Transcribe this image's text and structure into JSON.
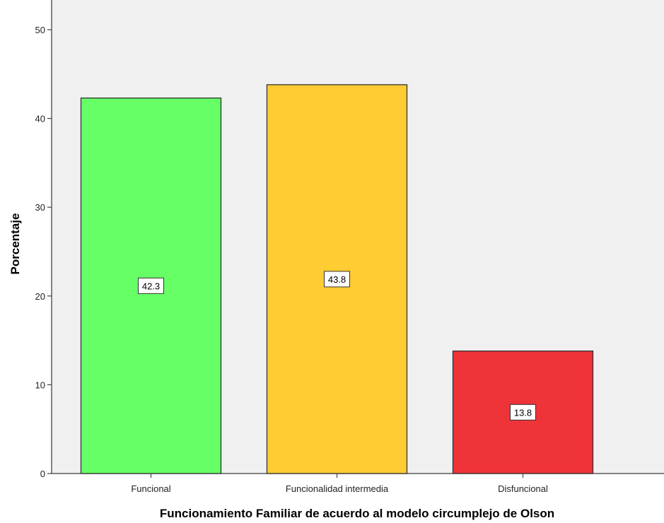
{
  "chart_data": {
    "type": "bar",
    "title": "",
    "xlabel": "Funcionamiento Familiar de acuerdo al modelo circumplejo de Olson",
    "ylabel": "Porcentaje",
    "ylim": [
      0,
      52.5
    ],
    "yticks": [
      0,
      10,
      20,
      30,
      40,
      50
    ],
    "grid": false,
    "legend": "none",
    "categories": [
      "Funcional",
      "Funcionalidad intermedia",
      "Disfuncional"
    ],
    "values": [
      42.3,
      43.8,
      13.8
    ],
    "value_labels": [
      "42.3",
      "43.8",
      "13.8"
    ],
    "colors": [
      "#66ff66",
      "#ffcc33",
      "#ee3339"
    ],
    "plot_background": "#f0f0f0"
  }
}
